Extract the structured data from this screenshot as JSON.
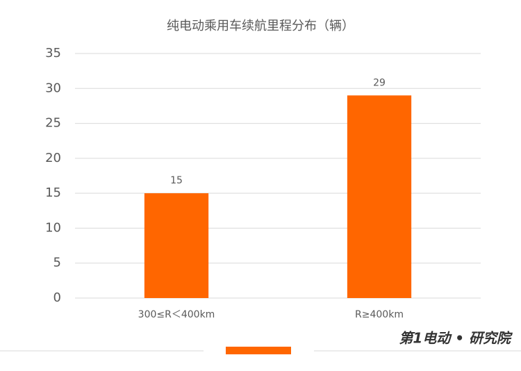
{
  "chart_data": {
    "type": "bar",
    "title": "纯电动乘用车续航里程分布（辆）",
    "categories": [
      "300≤R＜400km",
      "R≥400km"
    ],
    "values": [
      15,
      29
    ],
    "color": "#ff6600",
    "ylim": [
      0,
      35
    ],
    "yticks": [
      0,
      5,
      10,
      15,
      20,
      25,
      30,
      35
    ],
    "grid": true,
    "brand": "第1电动 • 研究院"
  }
}
